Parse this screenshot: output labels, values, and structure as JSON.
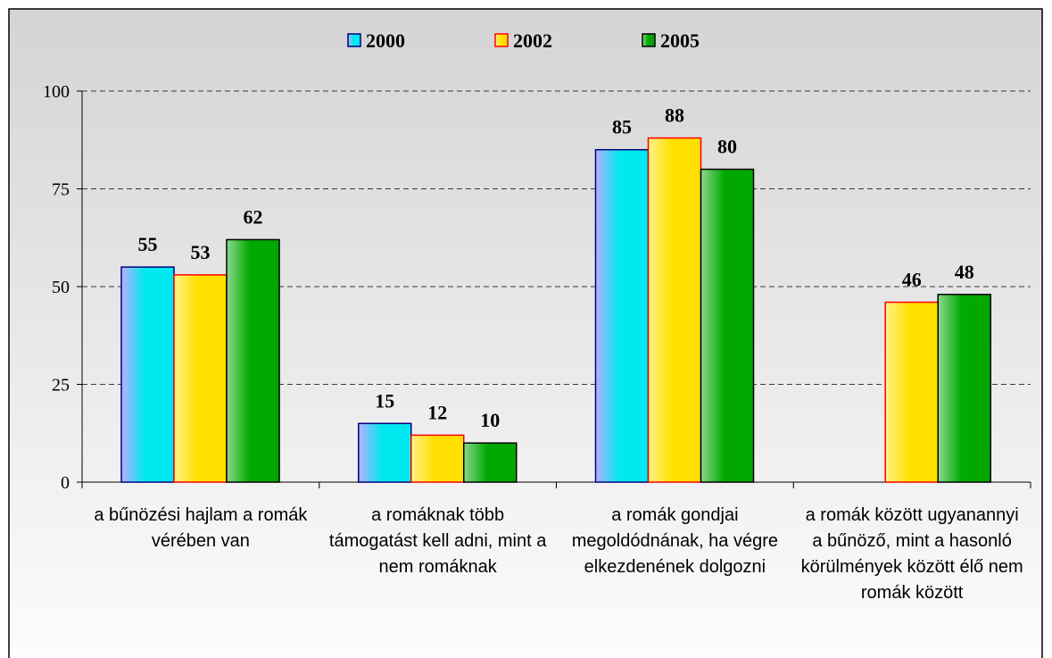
{
  "chart_data": {
    "type": "bar",
    "categories": [
      "a bűnözési hajlam a romák vérében van",
      "a romáknak több támogatást kell adni, mint a nem romáknak",
      "a romák gondjai megoldódnának, ha végre elkezdenének dolgozni",
      "a romák között ugyanannyi a bűnöző, mint a hasonló körülmények között élő nem romák között"
    ],
    "series": [
      {
        "name": "2000",
        "color": "#00e8f0",
        "border": "#000080",
        "values": [
          55,
          15,
          85,
          null
        ]
      },
      {
        "name": "2002",
        "color": "#ffe000",
        "border": "#ff0000",
        "values": [
          53,
          12,
          88,
          46
        ]
      },
      {
        "name": "2005",
        "color": "#00a800",
        "border": "#000000",
        "values": [
          62,
          10,
          80,
          48
        ]
      }
    ],
    "ylim": [
      0,
      100
    ],
    "yticks": [
      0,
      25,
      50,
      75,
      100
    ],
    "grid": true,
    "legend": "top"
  }
}
